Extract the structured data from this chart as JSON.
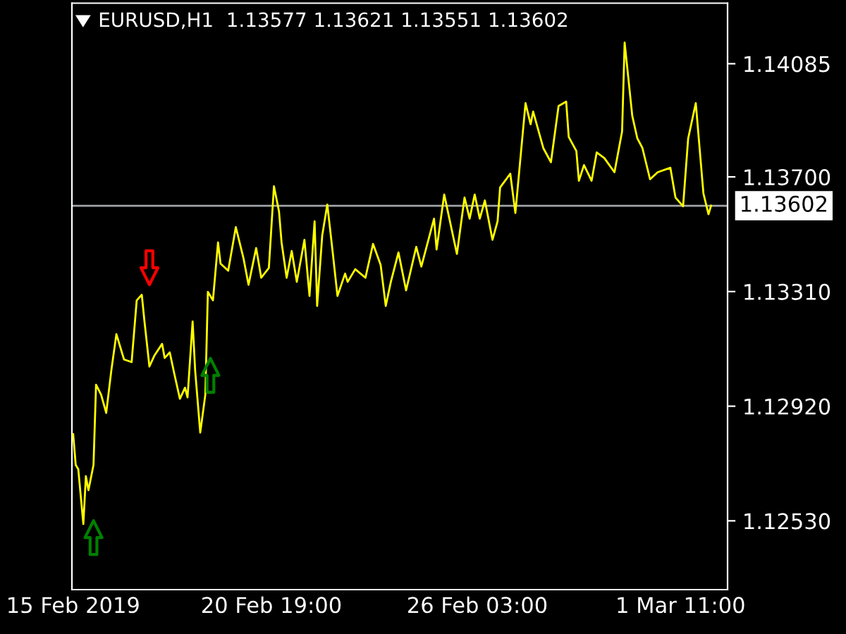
{
  "chart_data": {
    "type": "line",
    "title": "EURUSD,H1  1.13577 1.13621 1.13551 1.13602",
    "categories": [
      "15 Feb 2019",
      null,
      null,
      null,
      null,
      null,
      null,
      null,
      null,
      null,
      null,
      null,
      null,
      null,
      null,
      null,
      null,
      null,
      null,
      null,
      null,
      null,
      null,
      null,
      null,
      null,
      null,
      null,
      null,
      null,
      null,
      null,
      null,
      null,
      null,
      null,
      null,
      null,
      null,
      null,
      null,
      null,
      null,
      null,
      null,
      null,
      null,
      null,
      null,
      null,
      null,
      null,
      null,
      null,
      null,
      null,
      null,
      null,
      null,
      null,
      null,
      null,
      null,
      null,
      null,
      null,
      null,
      null,
      null,
      null,
      null,
      null,
      null,
      null,
      null,
      null,
      null,
      null,
      "20 Feb 19:00",
      null,
      null,
      null,
      null,
      null,
      null,
      null,
      null,
      null,
      null,
      null,
      null,
      null,
      null,
      null,
      null,
      null,
      null,
      null,
      null,
      null,
      null,
      null,
      null,
      null,
      null,
      null,
      null,
      null,
      null,
      null,
      null,
      null,
      null,
      null,
      null,
      null,
      null,
      null,
      null,
      null,
      null,
      null,
      null,
      null,
      null,
      null,
      null,
      null,
      null,
      null,
      null,
      null,
      null,
      null,
      null,
      null,
      null,
      null,
      null,
      null,
      null,
      null,
      null,
      null,
      null,
      null,
      null,
      null,
      null,
      null,
      null,
      null,
      null,
      null,
      null,
      null,
      null,
      null,
      null,
      "26 Feb 03:00",
      null,
      null,
      null,
      null,
      null,
      null,
      null,
      null,
      null,
      null,
      null,
      null,
      null,
      null,
      null,
      null,
      null,
      null,
      null,
      null,
      null,
      null,
      null,
      null,
      null,
      null,
      null,
      null,
      null,
      null,
      null,
      null,
      null,
      null,
      null,
      null,
      null,
      null,
      null,
      null,
      null,
      null,
      null,
      null,
      null,
      null,
      null,
      null,
      null,
      null,
      null,
      null,
      null,
      null,
      null,
      null,
      null,
      null,
      null,
      null,
      null,
      null,
      null,
      null,
      null,
      null,
      null,
      null,
      null,
      null,
      null,
      null,
      null,
      null,
      null,
      null,
      null,
      null,
      null,
      "1 Mar 11:00",
      null,
      null,
      null,
      null,
      null,
      null,
      null,
      null,
      null,
      null,
      null,
      null,
      null,
      null,
      null,
      null,
      null,
      null
    ],
    "ylim": [
      1.12296,
      1.14291
    ],
    "yticks": [
      {
        "value": 1.1253,
        "label": "1.12530"
      },
      {
        "value": 1.1292,
        "label": "1.12920"
      },
      {
        "value": 1.1331,
        "label": "1.13310"
      },
      {
        "value": 1.137,
        "label": "1.13700"
      },
      {
        "value": 1.14085,
        "label": "1.14085"
      }
    ],
    "grid": false,
    "legend": false,
    "ref_lines": [
      {
        "axis": "y",
        "value": 1.13602,
        "label": "1.13602",
        "color": "#a0a4a8"
      }
    ],
    "series": [
      {
        "color": "#ffff00",
        "values": [
          1.12825,
          1.1272,
          1.12706,
          null,
          1.12519,
          1.12682,
          1.12634,
          null,
          1.1272,
          1.12993,
          null,
          1.12959,
          null,
          1.12897,
          null,
          1.13041,
          null,
          1.13165,
          null,
          null,
          1.13079,
          null,
          null,
          1.1307,
          null,
          1.1328,
          null,
          1.13299,
          1.13213,
          null,
          1.13055,
          null,
          1.13093,
          null,
          null,
          1.13132,
          1.13084,
          null,
          1.13103,
          null,
          1.13022,
          null,
          1.12945,
          null,
          1.12983,
          1.1295,
          null,
          1.13208,
          1.13041,
          null,
          1.1283,
          null,
          1.12959,
          1.13309,
          null,
          1.1328,
          null,
          1.13477,
          1.13405,
          null,
          null,
          1.13381,
          null,
          null,
          1.13529,
          null,
          null,
          1.13424,
          null,
          1.13333,
          null,
          null,
          1.13458,
          null,
          1.13357,
          null,
          null,
          1.1339,
          null,
          1.13668,
          null,
          1.13582,
          1.13477,
          null,
          1.13357,
          null,
          1.13448,
          null,
          1.13343,
          null,
          null,
          1.13486,
          null,
          1.13295,
          null,
          1.13549,
          1.13261,
          null,
          1.13501,
          null,
          1.13606,
          null,
          1.13453,
          null,
          1.13295,
          null,
          null,
          1.13371,
          1.13343,
          null,
          null,
          1.13386,
          null,
          null,
          null,
          1.13357,
          null,
          null,
          1.13472,
          null,
          null,
          1.134,
          null,
          1.13261,
          null,
          1.13343,
          null,
          null,
          1.13443,
          null,
          null,
          1.13314,
          null,
          null,
          null,
          1.13462,
          null,
          1.13395,
          null,
          null,
          null,
          null,
          1.13558,
          1.13453,
          null,
          null,
          1.1364,
          null,
          null,
          null,
          null,
          1.13438,
          null,
          null,
          1.1363,
          null,
          1.13558,
          null,
          1.1364,
          null,
          1.13558,
          null,
          1.1362,
          null,
          null,
          1.13486,
          null,
          1.13549,
          1.13664,
          null,
          null,
          null,
          1.13711,
          null,
          1.13577,
          null,
          null,
          null,
          1.13951,
          null,
          1.13879,
          1.13922,
          null,
          null,
          null,
          1.13798,
          null,
          null,
          1.1375,
          null,
          null,
          1.13941,
          null,
          null,
          1.13956,
          1.13836,
          null,
          null,
          1.13788,
          1.13687,
          null,
          1.1374,
          null,
          null,
          1.13687,
          null,
          1.13783,
          null,
          null,
          1.13764,
          null,
          null,
          null,
          1.13716,
          null,
          null,
          1.13855,
          1.14157,
          null,
          null,
          1.13908,
          null,
          1.13831,
          null,
          1.13798,
          null,
          null,
          1.13692,
          null,
          null,
          1.13716,
          null,
          null,
          null,
          null,
          1.13731,
          null,
          1.1363,
          null,
          null,
          1.136,
          null,
          1.13831,
          null,
          null,
          1.13951,
          null,
          null,
          1.13644,
          null,
          1.13573,
          1.13602,
          null,
          null,
          null,
          null,
          null,
          null
        ]
      },
      {
        "type": "scatter",
        "color": "#008000",
        "marker": "triangle",
        "values": [
          null,
          null,
          null,
          null,
          null,
          null,
          null,
          null,
          1.12473,
          null,
          null,
          null,
          null,
          null,
          null,
          null,
          null,
          null,
          null,
          null,
          null,
          null,
          null,
          null,
          null,
          null,
          null,
          null,
          null,
          null,
          null,
          null,
          null,
          null,
          null,
          null,
          null,
          null,
          null,
          null,
          null,
          null,
          null,
          null,
          null,
          null,
          null,
          null,
          null,
          null,
          null,
          null,
          null,
          null,
          1.13025,
          null,
          null,
          null,
          null,
          null,
          null,
          null,
          null,
          null,
          null,
          null,
          null,
          null,
          null,
          null,
          null,
          null,
          null,
          null,
          null,
          null,
          null,
          null,
          null,
          null,
          null,
          null,
          null,
          null,
          null,
          null,
          null,
          null,
          null,
          null,
          null,
          null,
          null,
          null,
          null,
          null,
          null,
          null,
          null,
          null,
          null,
          null,
          null,
          null,
          null,
          null,
          null,
          null,
          null,
          null,
          null,
          null,
          null,
          null,
          null,
          null,
          null,
          null,
          null,
          null,
          null,
          null,
          null,
          null,
          null,
          null,
          null,
          null,
          null,
          null,
          null,
          null,
          null,
          null,
          null,
          null,
          null,
          null,
          null,
          null,
          null,
          null,
          null,
          null,
          null,
          null,
          null,
          null,
          null,
          null,
          null,
          null,
          null,
          null,
          null,
          null,
          null,
          null,
          null,
          null,
          null,
          null,
          null,
          null,
          null,
          null,
          null,
          null,
          null,
          null,
          null,
          null,
          null,
          null,
          null,
          null,
          null,
          null,
          null,
          null,
          null,
          null,
          null,
          null,
          null,
          null,
          null,
          null,
          null,
          null,
          null,
          null,
          null,
          null,
          null,
          null,
          null,
          null,
          null,
          null,
          null,
          null,
          null,
          null,
          null,
          null,
          null,
          null,
          null,
          null,
          null,
          null,
          null,
          null,
          null,
          null,
          null,
          null,
          null,
          null,
          null,
          null,
          null,
          null,
          null,
          null,
          null,
          null,
          null,
          null,
          null,
          null,
          null,
          null,
          null,
          null,
          null,
          null,
          null,
          null,
          null,
          null,
          null,
          null,
          null,
          null,
          null,
          null,
          null,
          null,
          null,
          null,
          null,
          null,
          null,
          null,
          null,
          null
        ]
      },
      {
        "type": "scatter",
        "color": "#ff0000",
        "marker": "triangle",
        "values": [
          null,
          null,
          null,
          null,
          null,
          null,
          null,
          null,
          null,
          null,
          null,
          null,
          null,
          null,
          null,
          null,
          null,
          null,
          null,
          null,
          null,
          null,
          null,
          null,
          null,
          null,
          null,
          null,
          null,
          null,
          1.13391,
          null,
          null,
          null,
          null,
          null,
          null,
          null,
          null,
          null,
          null,
          null,
          null,
          null,
          null,
          null,
          null,
          null,
          null,
          null,
          null,
          null,
          null,
          null,
          null,
          null,
          null,
          null,
          null,
          null,
          null,
          null,
          null,
          null,
          null,
          null,
          null,
          null,
          null,
          null,
          null,
          null,
          null,
          null,
          null,
          null,
          null,
          null,
          null,
          null,
          null,
          null,
          null,
          null,
          null,
          null,
          null,
          null,
          null,
          null,
          null,
          null,
          null,
          null,
          null,
          null,
          null,
          null,
          null,
          null,
          null,
          null,
          null,
          null,
          null,
          null,
          null,
          null,
          null,
          null,
          null,
          null,
          null,
          null,
          null,
          null,
          null,
          null,
          null,
          null,
          null,
          null,
          null,
          null,
          null,
          null,
          null,
          null,
          null,
          null,
          null,
          null,
          null,
          null,
          null,
          null,
          null,
          null,
          null,
          null,
          null,
          null,
          null,
          null,
          null,
          null,
          null,
          null,
          null,
          null,
          null,
          null,
          null,
          null,
          null,
          null,
          null,
          null,
          null,
          null,
          null,
          null,
          null,
          null,
          null,
          null,
          null,
          null,
          null,
          null,
          null,
          null,
          null,
          null,
          null,
          null,
          null,
          null,
          null,
          null,
          null,
          null,
          null,
          null,
          null,
          null,
          null,
          null,
          null,
          null,
          null,
          null,
          null,
          null,
          null,
          null,
          null,
          null,
          null,
          null,
          null,
          null,
          null,
          null,
          null,
          null,
          null,
          null,
          null,
          null,
          null,
          null,
          null,
          null,
          null,
          null,
          null,
          null,
          null,
          null,
          null,
          null,
          null,
          null,
          null,
          null,
          null,
          null,
          null,
          null,
          null,
          null,
          null,
          null,
          null,
          null,
          null,
          null,
          null,
          null,
          null,
          null,
          null,
          null,
          null,
          null,
          null,
          null,
          null,
          null,
          null,
          null,
          null,
          null,
          null,
          null,
          null,
          null
        ]
      }
    ]
  }
}
